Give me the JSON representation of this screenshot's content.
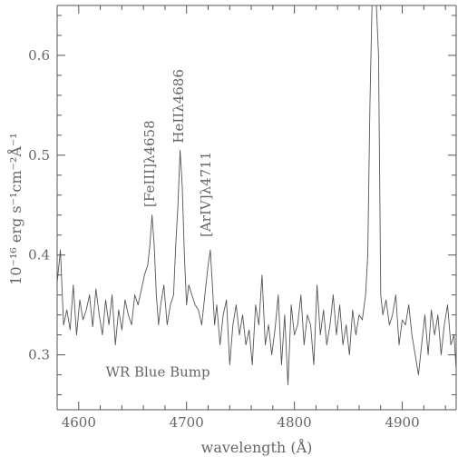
{
  "chart_data": {
    "type": "line",
    "xlabel": "wavelength (Å)",
    "ylabel": "10⁻¹⁶ erg s⁻¹cm⁻²Å⁻¹",
    "xlim": [
      4580,
      4950
    ],
    "ylim": [
      0.245,
      0.65
    ],
    "x_ticks": [
      4600,
      4700,
      4800,
      4900
    ],
    "y_ticks": [
      0.3,
      0.4,
      0.5,
      0.6
    ],
    "x_tick_labels": [
      "4600",
      "4700",
      "4800",
      "4900"
    ],
    "y_tick_labels": [
      "0.3",
      "0.4",
      "0.5",
      "0.6"
    ],
    "grid": false,
    "annotations": [
      {
        "text": "[FeIII]λ4658",
        "x": 4670,
        "y": 0.448,
        "rotation": -90
      },
      {
        "text": "HeIIλ4686",
        "x": 4697,
        "y": 0.512,
        "rotation": -90
      },
      {
        "text": "[ArIV]λ4711",
        "x": 4722,
        "y": 0.418,
        "rotation": -90
      },
      {
        "text": "WR Blue Bump",
        "x": 4625,
        "y": 0.278,
        "rotation": 0
      }
    ],
    "series": [
      {
        "x": [
          4580,
          4583,
          4586,
          4589,
          4592,
          4595,
          4598,
          4601,
          4604,
          4607,
          4610,
          4613,
          4616,
          4619,
          4622,
          4625,
          4628,
          4631,
          4634,
          4637,
          4640,
          4643,
          4646,
          4649,
          4652,
          4655,
          4658,
          4661,
          4664,
          4666,
          4668,
          4670,
          4672,
          4674,
          4676,
          4679,
          4682,
          4685,
          4688,
          4690,
          4692,
          4694,
          4696,
          4698,
          4700,
          4702,
          4705,
          4708,
          4711,
          4714,
          4717,
          4720,
          4722,
          4724,
          4726,
          4728,
          4731,
          4734,
          4737,
          4740,
          4743,
          4746,
          4749,
          4752,
          4755,
          4758,
          4761,
          4764,
          4767,
          4770,
          4773,
          4776,
          4779,
          4782,
          4785,
          4788,
          4791,
          4794,
          4797,
          4800,
          4803,
          4806,
          4809,
          4812,
          4815,
          4818,
          4821,
          4824,
          4827,
          4830,
          4833,
          4836,
          4839,
          4842,
          4845,
          4848,
          4851,
          4854,
          4857,
          4860,
          4863,
          4866,
          4868,
          4870,
          4872,
          4874,
          4876,
          4878,
          4880,
          4882,
          4885,
          4888,
          4891,
          4894,
          4897,
          4900,
          4903,
          4906,
          4909,
          4912,
          4915,
          4918,
          4921,
          4924,
          4927,
          4930,
          4933,
          4936,
          4939,
          4942,
          4945,
          4948,
          4950
        ],
        "y": [
          0.372,
          0.405,
          0.33,
          0.345,
          0.325,
          0.37,
          0.32,
          0.355,
          0.335,
          0.345,
          0.36,
          0.328,
          0.366,
          0.34,
          0.32,
          0.355,
          0.33,
          0.36,
          0.31,
          0.345,
          0.325,
          0.355,
          0.34,
          0.33,
          0.36,
          0.35,
          0.365,
          0.38,
          0.39,
          0.41,
          0.44,
          0.41,
          0.36,
          0.33,
          0.35,
          0.37,
          0.33,
          0.35,
          0.36,
          0.41,
          0.45,
          0.505,
          0.47,
          0.4,
          0.35,
          0.37,
          0.36,
          0.35,
          0.345,
          0.33,
          0.36,
          0.39,
          0.405,
          0.37,
          0.33,
          0.35,
          0.31,
          0.34,
          0.355,
          0.29,
          0.33,
          0.35,
          0.32,
          0.34,
          0.31,
          0.325,
          0.29,
          0.35,
          0.33,
          0.38,
          0.31,
          0.33,
          0.3,
          0.325,
          0.36,
          0.29,
          0.34,
          0.27,
          0.35,
          0.32,
          0.33,
          0.36,
          0.31,
          0.34,
          0.33,
          0.29,
          0.37,
          0.32,
          0.345,
          0.31,
          0.33,
          0.36,
          0.32,
          0.35,
          0.31,
          0.33,
          0.3,
          0.345,
          0.32,
          0.34,
          0.335,
          0.36,
          0.4,
          0.55,
          0.7,
          0.7,
          0.7,
          0.6,
          0.36,
          0.34,
          0.355,
          0.33,
          0.34,
          0.36,
          0.31,
          0.335,
          0.33,
          0.35,
          0.32,
          0.3,
          0.28,
          0.31,
          0.34,
          0.3,
          0.345,
          0.32,
          0.34,
          0.3,
          0.33,
          0.35,
          0.31,
          0.32,
          0.285
        ]
      }
    ]
  }
}
